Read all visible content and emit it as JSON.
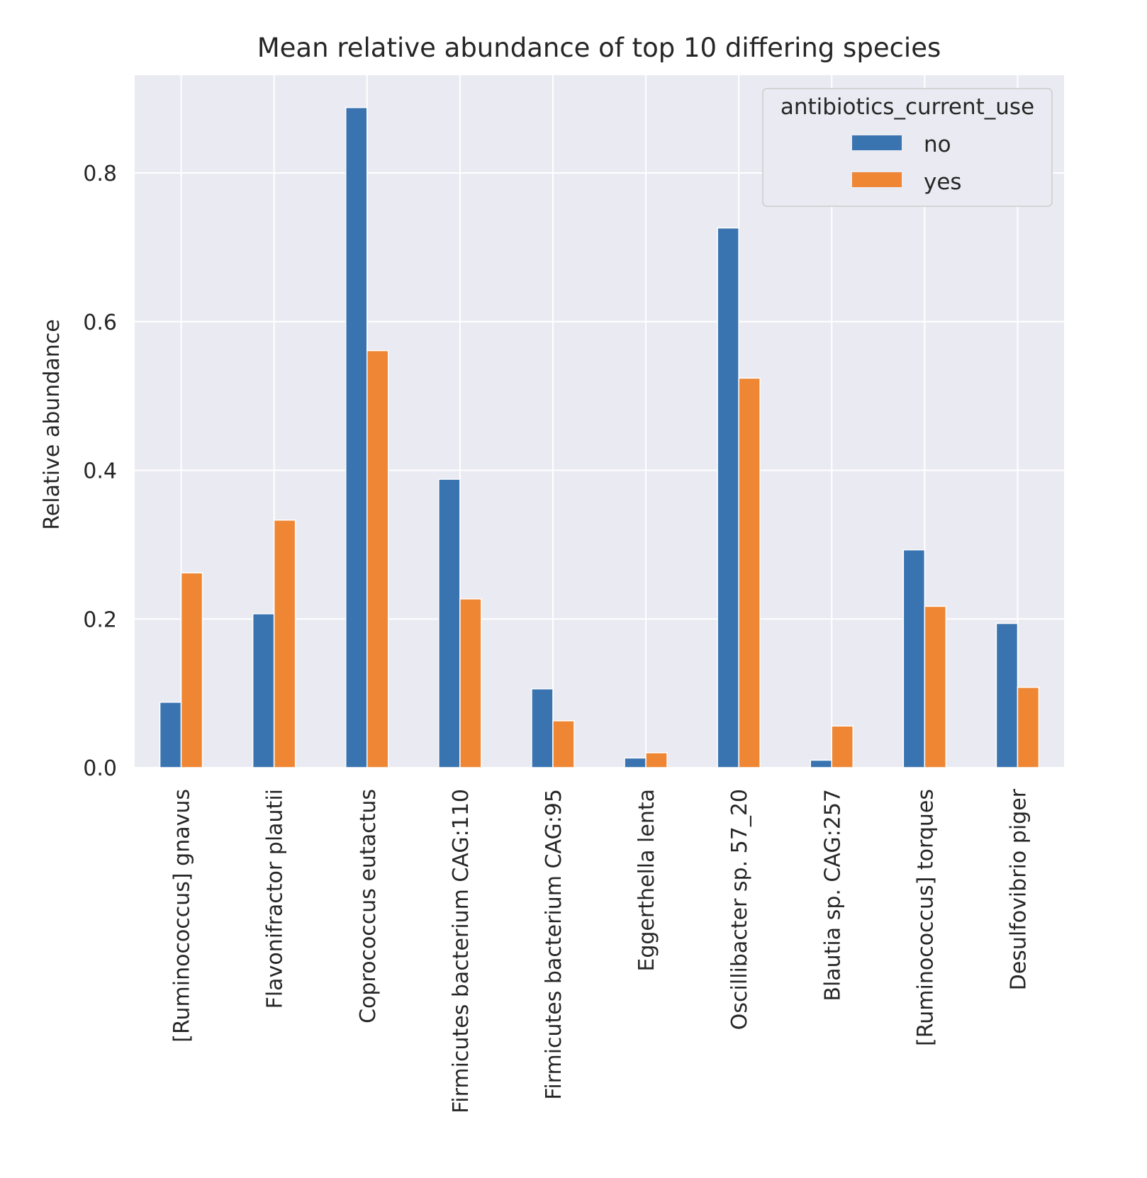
{
  "chart_data": {
    "type": "bar",
    "title": "Mean relative abundance of top 10 differing species",
    "xlabel": "",
    "ylabel": "Relative abundance",
    "ylim": [
      0,
      0.93
    ],
    "yticks": [
      0.0,
      0.2,
      0.4,
      0.6,
      0.8
    ],
    "ytick_labels": [
      "0.0",
      "0.2",
      "0.4",
      "0.6",
      "0.8"
    ],
    "grid": true,
    "legend_placement": "top-right",
    "legend_title": "antibiotics_current_use",
    "categories": [
      "[Ruminococcus] gnavus",
      "Flavonifractor plautii",
      "Coprococcus eutactus",
      "Firmicutes bacterium CAG:110",
      "Firmicutes bacterium CAG:95",
      "Eggerthella lenta",
      "Oscillibacter sp. 57_20",
      "Blautia sp. CAG:257",
      "[Ruminococcus] torques",
      "Desulfovibrio piger"
    ],
    "series": [
      {
        "name": "no",
        "color": "#3a74b0",
        "values": [
          0.088,
          0.207,
          0.888,
          0.388,
          0.106,
          0.013,
          0.726,
          0.01,
          0.293,
          0.194
        ]
      },
      {
        "name": "yes",
        "color": "#ee8634",
        "values": [
          0.262,
          0.333,
          0.561,
          0.227,
          0.063,
          0.02,
          0.524,
          0.056,
          0.217,
          0.108
        ]
      }
    ],
    "colors": {
      "plot_background": "#eaeaf2",
      "grid": "#ffffff",
      "text": "#262626"
    }
  }
}
